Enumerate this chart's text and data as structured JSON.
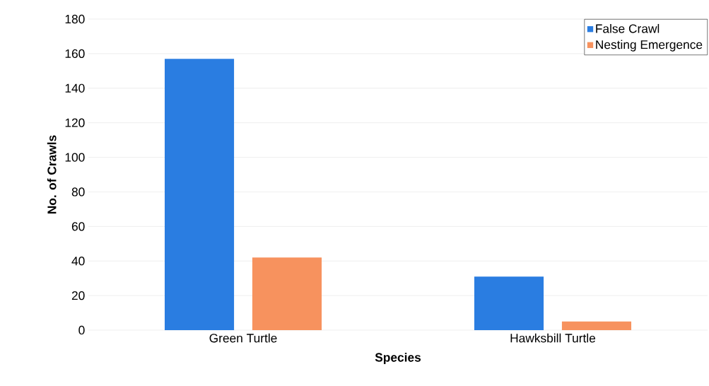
{
  "chart_data": {
    "type": "bar",
    "xlabel": "Species",
    "ylabel": "No. of Crawls",
    "categories": [
      "Green Turtle",
      "Hawksbill Turtle"
    ],
    "series": [
      {
        "name": "False Crawl",
        "color": "#2a7de1",
        "values": [
          157,
          31
        ]
      },
      {
        "name": "Nesting Emergence",
        "color": "#f7925e",
        "values": [
          42,
          5
        ]
      }
    ],
    "ylim": [
      0,
      180
    ],
    "yticks": [
      0,
      20,
      40,
      60,
      80,
      100,
      120,
      140,
      160,
      180
    ],
    "grid": "y",
    "legend": "top right"
  }
}
